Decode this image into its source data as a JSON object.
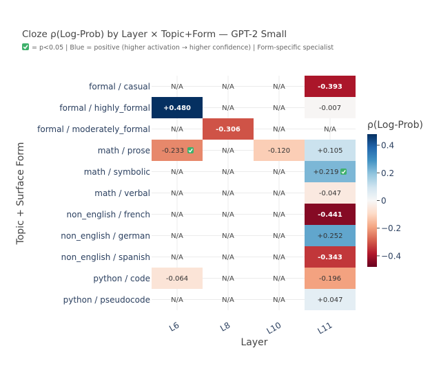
{
  "chart_data": {
    "type": "heatmap",
    "title": "Cloze ρ(Log-Prob) by Layer × Topic+Form — GPT-2 Small",
    "subtitle": "✅ = p<0.05  |  Blue = positive (higher activation → higher confidence)  |  Form-specific specialist",
    "xlabel": "Layer",
    "ylabel": "Topic + Surface Form",
    "x": [
      "L6",
      "L8",
      "L10",
      "L11"
    ],
    "y": [
      "formal / casual",
      "formal / highly_formal",
      "formal / moderately_formal",
      "math / prose",
      "math / symbolic",
      "math / verbal",
      "non_english / french",
      "non_english / german",
      "non_english / spanish",
      "python / code",
      "python / pseudocode"
    ],
    "values": [
      [
        null,
        null,
        null,
        -0.393
      ],
      [
        0.48,
        null,
        null,
        -0.007
      ],
      [
        null,
        -0.306,
        null,
        null
      ],
      [
        -0.233,
        null,
        -0.12,
        0.105
      ],
      [
        null,
        null,
        null,
        0.219
      ],
      [
        null,
        null,
        null,
        -0.047
      ],
      [
        null,
        null,
        null,
        -0.441
      ],
      [
        null,
        null,
        null,
        0.252
      ],
      [
        null,
        null,
        null,
        -0.343
      ],
      [
        -0.064,
        null,
        null,
        -0.196
      ],
      [
        null,
        null,
        null,
        0.047
      ]
    ],
    "cell_labels": [
      [
        "N/A",
        "N/A",
        "N/A",
        "-0.393"
      ],
      [
        "+0.480",
        "N/A",
        "N/A",
        "-0.007"
      ],
      [
        "N/A",
        "-0.306",
        "N/A",
        "N/A"
      ],
      [
        "-0.233",
        "N/A",
        "-0.120",
        "+0.105"
      ],
      [
        "N/A",
        "N/A",
        "N/A",
        "+0.219"
      ],
      [
        "N/A",
        "N/A",
        "N/A",
        "-0.047"
      ],
      [
        "N/A",
        "N/A",
        "N/A",
        "-0.441"
      ],
      [
        "N/A",
        "N/A",
        "N/A",
        "+0.252"
      ],
      [
        "N/A",
        "N/A",
        "N/A",
        "-0.343"
      ],
      [
        "-0.064",
        "N/A",
        "N/A",
        "-0.196"
      ],
      [
        "N/A",
        "N/A",
        "N/A",
        "+0.047"
      ]
    ],
    "significant": [
      [
        3,
        0
      ],
      [
        4,
        3
      ]
    ],
    "significance_marker": "✅",
    "na_label": "N/A",
    "colorscale": "RdBu",
    "zlim": [
      -0.48,
      0.48
    ],
    "colorbar": {
      "title": "ρ(Log-Prob)",
      "ticks": [
        0.4,
        0.2,
        0,
        -0.2,
        -0.4
      ],
      "tick_labels": [
        "0.4",
        "0.2",
        "0",
        "−0.2",
        "−0.4"
      ]
    },
    "grid": true,
    "legend": "none"
  }
}
